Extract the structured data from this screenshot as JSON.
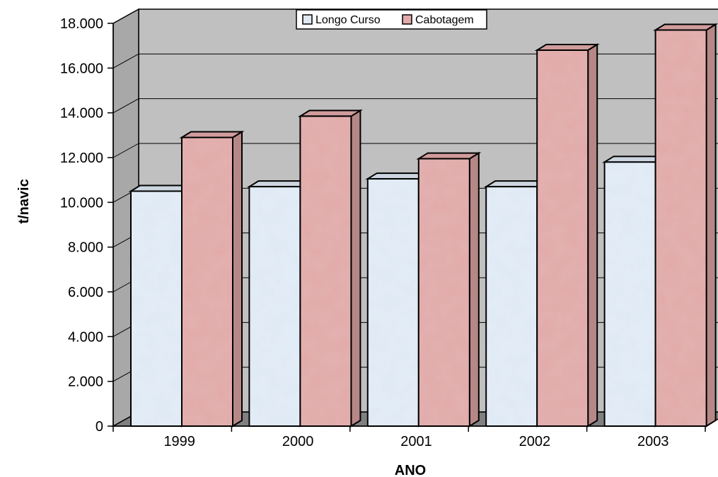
{
  "chart_data": {
    "type": "bar",
    "title": "",
    "xlabel": "ANO",
    "ylabel": "t/navic",
    "categories": [
      "1999",
      "2000",
      "2001",
      "2002",
      "2003"
    ],
    "series": [
      {
        "name": "Longo Curso",
        "values": [
          10500,
          10700,
          11050,
          10700,
          11800
        ]
      },
      {
        "name": "Cabotagem",
        "values": [
          12900,
          13850,
          11950,
          16800,
          17700
        ]
      }
    ],
    "ylim": [
      0,
      18000
    ],
    "yticks": [
      0,
      2000,
      4000,
      6000,
      8000,
      10000,
      12000,
      14000,
      16000,
      18000
    ],
    "ytick_labels": [
      "0",
      "2.000",
      "4.000",
      "6.000",
      "8.000",
      "10.000",
      "12.000",
      "14.000",
      "16.000",
      "18.000"
    ],
    "grid": true,
    "three_d": true,
    "legend_position": "top",
    "colors": {
      "series": [
        "#dfe9f4",
        "#e2aaa9"
      ],
      "wall": "#c0c0c0",
      "floor": "#808080",
      "gridline": "#000000"
    }
  }
}
